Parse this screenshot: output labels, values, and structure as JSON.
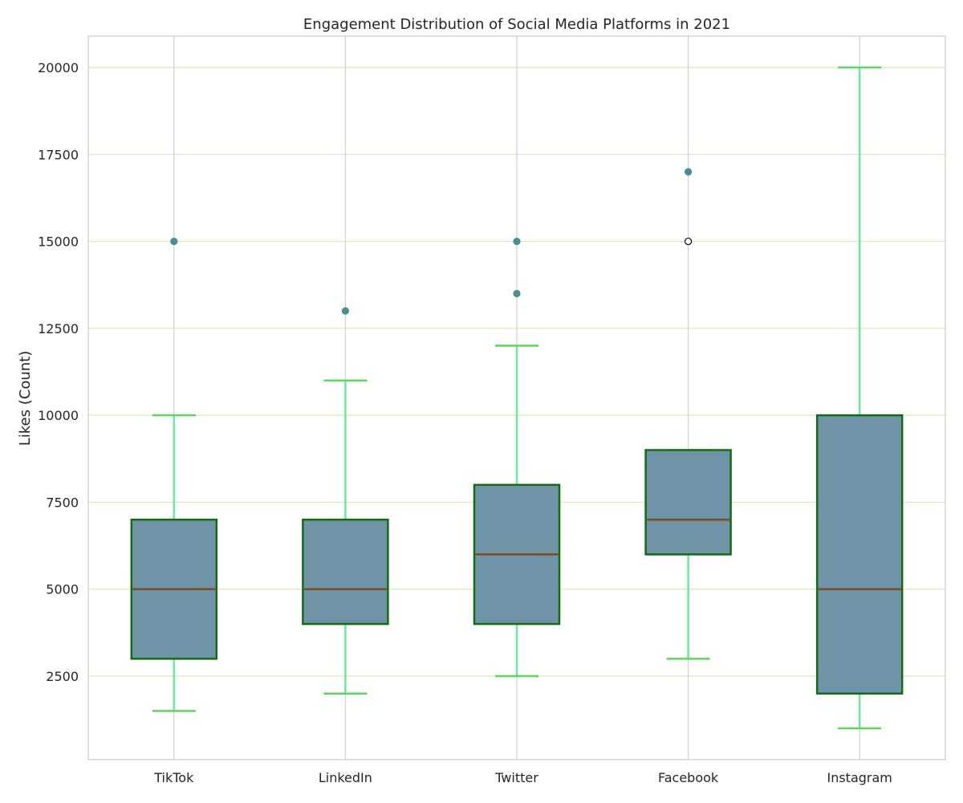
{
  "chart_data": {
    "type": "box",
    "title": "Engagement Distribution of Social Media Platforms in 2021",
    "xlabel": "",
    "ylabel": "Likes (Count)",
    "ylim": [
      100,
      20900
    ],
    "yticks": [
      2500,
      5000,
      7500,
      10000,
      12500,
      15000,
      17500,
      20000
    ],
    "grid": true,
    "categories": [
      "TikTok",
      "LinkedIn",
      "Twitter",
      "Facebook",
      "Instagram"
    ],
    "boxes": [
      {
        "category": "TikTok",
        "whisker_low": 1500,
        "q1": 3000,
        "median": 5000,
        "q3": 7000,
        "whisker_high": 10000,
        "outliers": [
          15000
        ]
      },
      {
        "category": "LinkedIn",
        "whisker_low": 2000,
        "q1": 4000,
        "median": 5000,
        "q3": 7000,
        "whisker_high": 11000,
        "outliers": [
          13000
        ]
      },
      {
        "category": "Twitter",
        "whisker_low": 2500,
        "q1": 4000,
        "median": 6000,
        "q3": 8000,
        "whisker_high": 12000,
        "outliers": [
          13500,
          15000
        ]
      },
      {
        "category": "Facebook",
        "whisker_low": 3000,
        "q1": 6000,
        "median": 7000,
        "q3": 9000,
        "whisker_high": 9000,
        "outliers": [
          15000,
          17000
        ]
      },
      {
        "category": "Instagram",
        "whisker_low": 1000,
        "q1": 2000,
        "median": 5000,
        "q3": 10000,
        "whisker_high": 20000,
        "outliers": []
      }
    ],
    "colors": {
      "box_fill": "#6f94a8",
      "box_edge": "#146b14",
      "median": "#7a4a22",
      "whisker": "#6ee89a",
      "cap": "#5cd65c",
      "outlier": "#4a8d96",
      "grid_h": "#dbe8b8",
      "grid_v": "#cfcfcf",
      "spine": "#cccccc"
    }
  }
}
